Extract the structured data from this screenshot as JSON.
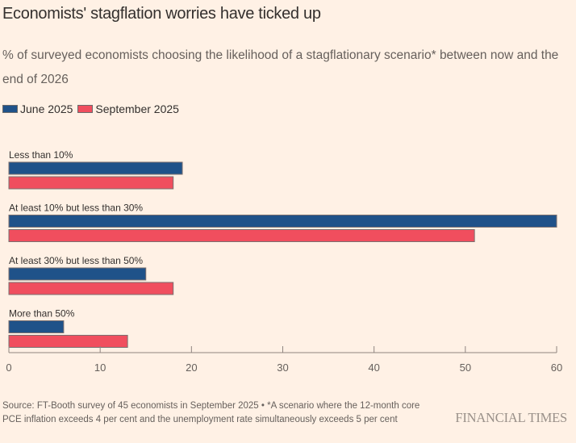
{
  "chart_data": {
    "type": "bar",
    "orientation": "horizontal",
    "title": "Economists' stagflation worries have ticked up",
    "subtitle": "% of surveyed economists choosing the likelihood of a stagflationary scenario* between now and the end of 2026",
    "categories": [
      "Less than 10%",
      "At least 10% but less than 30%",
      "At least 30% but less than 50%",
      "More than 50%"
    ],
    "series": [
      {
        "name": "June 2025",
        "color": "#1f5289",
        "values": [
          19,
          60,
          15,
          6
        ]
      },
      {
        "name": "September 2025",
        "color": "#f04e5e",
        "values": [
          18,
          51,
          18,
          13
        ]
      }
    ],
    "xlim": [
      0,
      60
    ],
    "xticks": [
      0,
      10,
      20,
      30,
      40,
      50,
      60
    ],
    "xlabel": "",
    "ylabel": "",
    "legend": "top-left",
    "grid": false
  },
  "footer": {
    "source": "Source: FT-Booth survey of 45 economists in September 2025 • *A scenario where the 12-month core PCE inflation exceeds 4 per cent and the unemployment rate simultaneously exceeds 5 per cent",
    "brand": "FINANCIAL TIMES"
  }
}
